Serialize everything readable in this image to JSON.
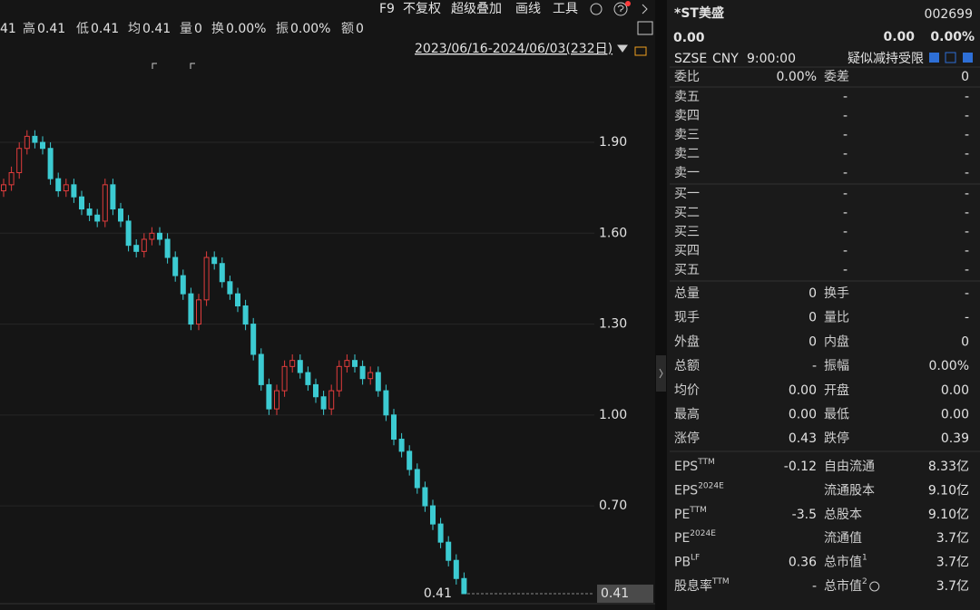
{
  "top_bar": {
    "partial_value": "41",
    "stats": [
      {
        "label": "高",
        "value": "0.41"
      },
      {
        "label": "低",
        "value": "0.41"
      },
      {
        "label": "均",
        "value": "0.41"
      },
      {
        "label": "量",
        "value": "0"
      },
      {
        "label": "换",
        "value": "0.00%"
      },
      {
        "label": "振",
        "value": "0.00%"
      },
      {
        "label": "额",
        "value": "0"
      }
    ],
    "toolbar": [
      "F9",
      "不复权",
      "超级叠加",
      "画线",
      "工具"
    ],
    "date_range": "2023/06/16-2024/06/03(232日)"
  },
  "chart_data": {
    "type": "candlestick",
    "open": [
      1.74,
      1.76,
      1.8,
      1.88,
      1.92,
      1.9,
      1.88,
      1.78,
      1.74,
      1.76,
      1.72,
      1.68,
      1.66,
      1.64,
      1.76,
      1.68,
      1.64,
      1.56,
      1.54,
      1.58,
      1.6,
      1.58,
      1.52,
      1.46,
      1.4,
      1.3,
      1.38,
      1.52,
      1.5,
      1.44,
      1.4,
      1.36,
      1.3,
      1.2,
      1.1,
      1.02,
      1.08,
      1.16,
      1.18,
      1.14,
      1.1,
      1.06,
      1.02,
      1.08,
      1.16,
      1.18,
      1.16,
      1.12,
      1.14,
      1.08,
      1.0,
      0.92,
      0.88,
      0.82,
      0.76,
      0.7,
      0.64,
      0.58,
      0.52,
      0.46
    ],
    "close": [
      1.76,
      1.8,
      1.88,
      1.92,
      1.9,
      1.88,
      1.78,
      1.74,
      1.76,
      1.72,
      1.68,
      1.66,
      1.64,
      1.76,
      1.68,
      1.64,
      1.56,
      1.54,
      1.58,
      1.6,
      1.58,
      1.52,
      1.46,
      1.4,
      1.3,
      1.38,
      1.52,
      1.5,
      1.44,
      1.4,
      1.36,
      1.3,
      1.2,
      1.1,
      1.02,
      1.08,
      1.16,
      1.18,
      1.14,
      1.1,
      1.06,
      1.02,
      1.08,
      1.16,
      1.18,
      1.16,
      1.12,
      1.14,
      1.08,
      1.0,
      0.92,
      0.88,
      0.82,
      0.76,
      0.7,
      0.64,
      0.58,
      0.52,
      0.46,
      0.41
    ],
    "high": [
      1.78,
      1.82,
      1.9,
      1.94,
      1.94,
      1.92,
      1.9,
      1.8,
      1.78,
      1.78,
      1.74,
      1.7,
      1.68,
      1.78,
      1.78,
      1.7,
      1.66,
      1.58,
      1.6,
      1.62,
      1.62,
      1.6,
      1.54,
      1.48,
      1.42,
      1.4,
      1.54,
      1.54,
      1.52,
      1.46,
      1.42,
      1.38,
      1.32,
      1.22,
      1.12,
      1.1,
      1.18,
      1.2,
      1.2,
      1.16,
      1.12,
      1.08,
      1.1,
      1.18,
      1.2,
      1.2,
      1.18,
      1.16,
      1.16,
      1.1,
      1.02,
      0.94,
      0.9,
      0.84,
      0.78,
      0.72,
      0.66,
      0.6,
      0.54,
      0.48
    ],
    "low": [
      1.72,
      1.74,
      1.78,
      1.86,
      1.88,
      1.86,
      1.76,
      1.72,
      1.72,
      1.7,
      1.66,
      1.64,
      1.62,
      1.62,
      1.66,
      1.62,
      1.54,
      1.52,
      1.52,
      1.56,
      1.56,
      1.5,
      1.44,
      1.38,
      1.28,
      1.28,
      1.36,
      1.48,
      1.42,
      1.38,
      1.34,
      1.28,
      1.18,
      1.08,
      1.0,
      1.0,
      1.06,
      1.14,
      1.12,
      1.08,
      1.04,
      1.0,
      1.0,
      1.06,
      1.14,
      1.14,
      1.1,
      1.1,
      1.06,
      0.98,
      0.9,
      0.86,
      0.8,
      0.74,
      0.68,
      0.62,
      0.56,
      0.5,
      0.44,
      0.41
    ],
    "up_color": "#e23d3d",
    "down_color": "#3ccbd2",
    "ylim": [
      0.38,
      2.37
    ],
    "yticks": [
      {
        "value": 1.9,
        "label": "1.90"
      },
      {
        "value": 1.6,
        "label": "1.60"
      },
      {
        "value": 1.3,
        "label": "1.30"
      },
      {
        "value": 1.0,
        "label": "1.00"
      },
      {
        "value": 0.7,
        "label": "0.70"
      }
    ],
    "last_price": {
      "value": 0.41,
      "label": "0.41"
    },
    "grid": true
  },
  "quote": {
    "name": "*ST美盛",
    "code": "002699",
    "price": "0.00",
    "change": "0.00",
    "change_pct": "0.00%",
    "exchange": "SZSE",
    "currency": "CNY",
    "time": "9:00:00",
    "tag": "疑似减持受限"
  },
  "order_book": {
    "ratio_label": "委比",
    "ratio": "0.00%",
    "diff_label": "委差",
    "diff": "0",
    "asks": [
      {
        "label": "卖五",
        "price": "-",
        "volume": "-"
      },
      {
        "label": "卖四",
        "price": "-",
        "volume": "-"
      },
      {
        "label": "卖三",
        "price": "-",
        "volume": "-"
      },
      {
        "label": "卖二",
        "price": "-",
        "volume": "-"
      },
      {
        "label": "卖一",
        "price": "-",
        "volume": "-"
      }
    ],
    "bids": [
      {
        "label": "买一",
        "price": "-",
        "volume": "-"
      },
      {
        "label": "买二",
        "price": "-",
        "volume": "-"
      },
      {
        "label": "买三",
        "price": "-",
        "volume": "-"
      },
      {
        "label": "买四",
        "price": "-",
        "volume": "-"
      },
      {
        "label": "买五",
        "price": "-",
        "volume": "-"
      }
    ]
  },
  "stats": [
    {
      "rows": [
        {
          "left": {
            "label": "总量",
            "value": "0"
          },
          "right": {
            "label": "换手",
            "value": "-"
          }
        },
        {
          "left": {
            "label": "现手",
            "value": "0"
          },
          "right": {
            "label": "量比",
            "value": "-"
          }
        },
        {
          "left": {
            "label": "外盘",
            "value": "0",
            "color": "#ff3b3b"
          },
          "right": {
            "label": "内盘",
            "value": "0",
            "color": "#27c24c"
          }
        },
        {
          "left": {
            "label": "总额",
            "value": "-"
          },
          "right": {
            "label": "振幅",
            "value": "0.00%"
          }
        },
        {
          "left": {
            "label": "均价",
            "value": "0.00"
          },
          "right": {
            "label": "开盘",
            "value": "0.00"
          }
        },
        {
          "left": {
            "label": "最高",
            "value": "0.00"
          },
          "right": {
            "label": "最低",
            "value": "0.00"
          }
        },
        {
          "left": {
            "label": "涨停",
            "value": "0.43",
            "color": "#ff3b3b"
          },
          "right": {
            "label": "跌停",
            "value": "0.39",
            "color": "#27c24c"
          }
        }
      ]
    },
    {
      "rows": [
        {
          "left": {
            "label": "EPS",
            "sup": "TTM",
            "value": "-0.12"
          },
          "right": {
            "label": "自由流通",
            "value": "8.33亿"
          }
        },
        {
          "left": {
            "label": "EPS",
            "sup": "2024E"
          },
          "right": {
            "label": "流通股本",
            "value": "9.10亿"
          }
        },
        {
          "left": {
            "label": "PE",
            "sup": "TTM",
            "value": "-3.5"
          },
          "right": {
            "label": "总股本",
            "value": "9.10亿"
          }
        },
        {
          "left": {
            "label": "PE",
            "sup": "2024E"
          },
          "right": {
            "label": "流通值",
            "value": "3.7亿"
          }
        },
        {
          "left": {
            "label": "PB",
            "sup": "LF",
            "value": "0.36"
          },
          "right": {
            "label": "总市值",
            "sup": "1",
            "value": "3.7亿"
          }
        },
        {
          "left": {
            "label": "股息率",
            "sup": "TTM",
            "value": "-"
          },
          "right": {
            "label": "总市值",
            "sup": "2",
            "value": "3.7亿",
            "info": true
          }
        }
      ]
    }
  ]
}
